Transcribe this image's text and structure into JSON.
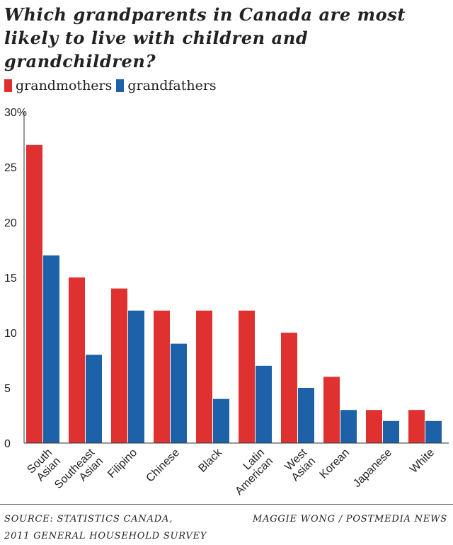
{
  "chart_data": {
    "type": "bar",
    "title": "Which grandparents in Canada are most likely to live with children and grandchildren?",
    "categories": [
      [
        "South",
        "Asian"
      ],
      [
        "Southeast",
        "Asian"
      ],
      [
        "Filipino"
      ],
      [
        "Chinese"
      ],
      [
        "Black"
      ],
      [
        "Latin",
        "American"
      ],
      [
        "West",
        "Asian"
      ],
      [
        "Korean"
      ],
      [
        "Japanese"
      ],
      [
        "White"
      ]
    ],
    "series": [
      {
        "name": "grandmothers",
        "color": "#e03131",
        "values": [
          27,
          15,
          14,
          12,
          12,
          12,
          10,
          6,
          3,
          3
        ]
      },
      {
        "name": "grandfathers",
        "color": "#1d62a8",
        "values": [
          17,
          8,
          12,
          9,
          4,
          7,
          5,
          3,
          2,
          2
        ]
      }
    ],
    "ylim": [
      0,
      30
    ],
    "yticks": [
      "0",
      "5",
      "10",
      "15",
      "20",
      "25",
      "30%"
    ],
    "grid": false,
    "legend": "top-left"
  },
  "footer": {
    "source_line1": "SOURCE: STATISTICS CANADA,",
    "source_line2": "2011 GENERAL HOUSEHOLD SURVEY",
    "credit": "MAGGIE WONG / POSTMEDIA NEWS"
  }
}
